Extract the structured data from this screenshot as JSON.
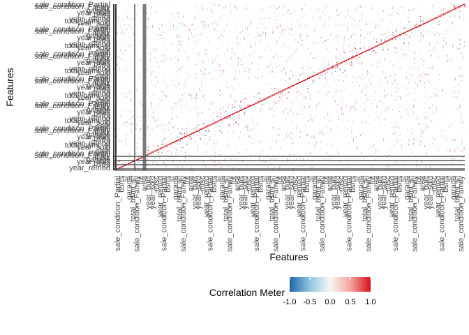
{
  "chart_data": {
    "type": "heatmap",
    "title": "",
    "xlabel": "Features",
    "ylabel": "Features",
    "value_range": [
      -1.0,
      1.0
    ],
    "diagonal_value": 1.0,
    "feature_count": 500,
    "visible_feature_labels": [
      "sale_condition_Partial",
      "sale_condition_Family",
      "misc",
      "garage",
      "year_built",
      "bsmt",
      "lot",
      "year_remod",
      "total_bsmt_sf",
      "year_sold",
      "sf",
      "area"
    ],
    "legend": {
      "title": "Correlation Meter",
      "position": "bottom",
      "ticks": [
        "-1.0",
        "-0.5",
        "0.0",
        "0.5",
        "1.0"
      ],
      "tick_values": [
        -1.0,
        -0.5,
        0.0,
        0.5,
        1.0
      ],
      "colors": {
        "low": "#2166ac",
        "mid": "#f7f7f7",
        "high": "#d6111a"
      }
    },
    "grid": false
  }
}
